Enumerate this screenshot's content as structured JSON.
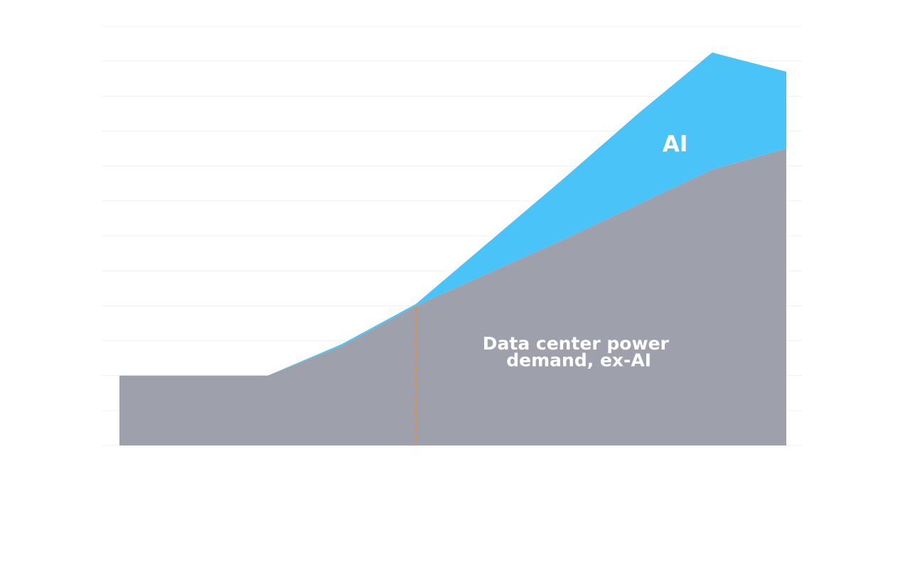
{
  "chart_data": {
    "type": "area",
    "stacked": true,
    "x": [
      0,
      1,
      2,
      3,
      4,
      5,
      6,
      7,
      8,
      9
    ],
    "xlim": [
      0,
      9
    ],
    "ylim": [
      0,
      12
    ],
    "grid": true,
    "series": [
      {
        "name": "Data center power demand, ex-AI",
        "label_lines": [
          "Data center power",
          "demand, ex-AI"
        ],
        "values": [
          2.0,
          2.0,
          2.0,
          2.85,
          4.0,
          4.95,
          5.9,
          6.9,
          7.9,
          8.5
        ],
        "color": "#9ea0ab"
      },
      {
        "name": "AI",
        "values": [
          0.0,
          0.0,
          0.0,
          0.05,
          0.05,
          0.9,
          1.75,
          2.6,
          3.35,
          2.2
        ],
        "color": "#4ac3f8"
      }
    ],
    "markers": [
      {
        "type": "vertical-dashed-line",
        "x": 4,
        "color": "#f28c28"
      }
    ]
  }
}
